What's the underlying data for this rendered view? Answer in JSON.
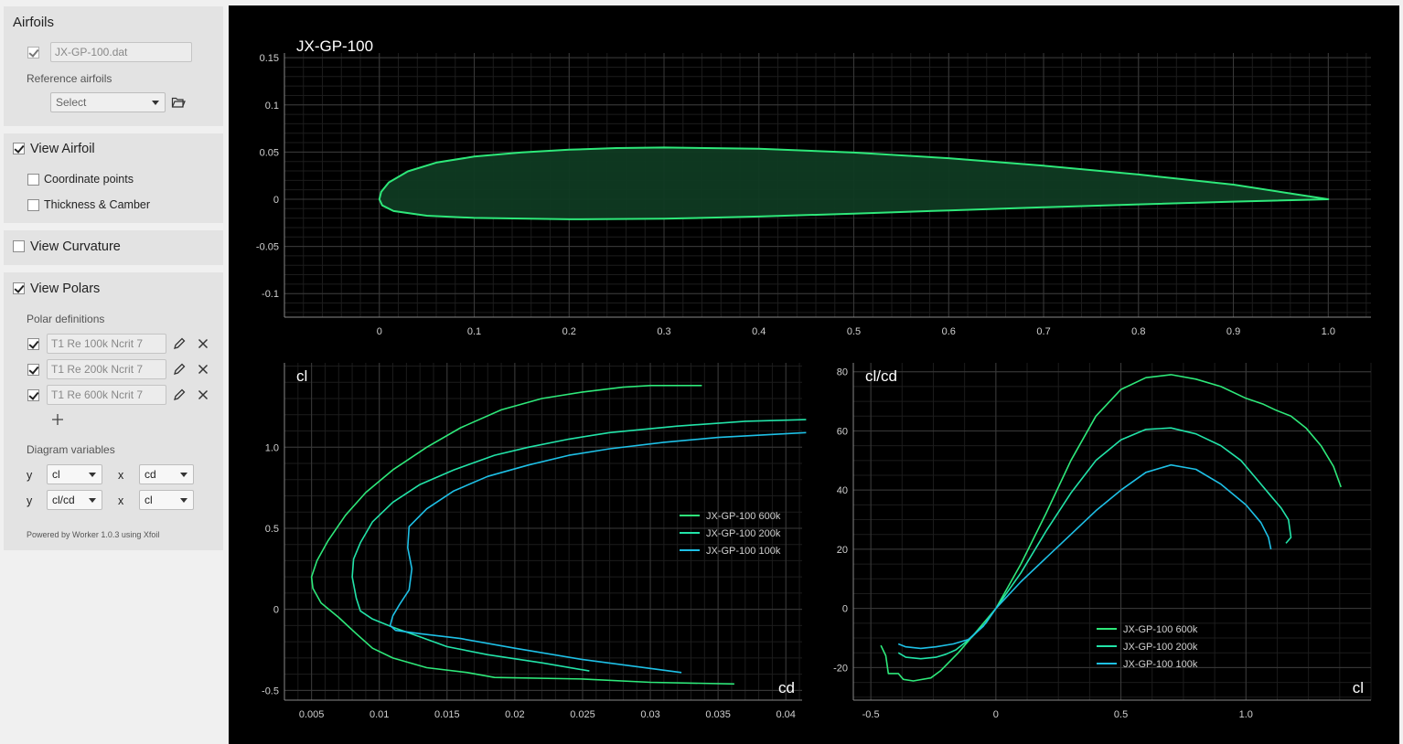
{
  "sidebar": {
    "airfoils": {
      "title": "Airfoils",
      "file_checked": true,
      "file_name": "JX-GP-100.dat",
      "reference_label": "Reference airfoils",
      "reference_select": "Select",
      "folder_icon": "folder-open-icon"
    },
    "view_airfoil": {
      "label": "View Airfoil",
      "checked": true,
      "coordinate_points": "Coordinate points",
      "coordinate_points_checked": false,
      "thickness_camber": "Thickness & Camber",
      "thickness_camber_checked": false
    },
    "view_curvature": {
      "label": "View Curvature",
      "checked": false
    },
    "view_polars": {
      "label": "View Polars",
      "checked": true,
      "polar_definitions_label": "Polar definitions",
      "polars": [
        {
          "name": "T1 Re 100k Ncrit 7",
          "checked": true
        },
        {
          "name": "T1 Re 200k Ncrit 7",
          "checked": true
        },
        {
          "name": "T1 Re 600k Ncrit 7",
          "checked": true
        }
      ],
      "add_icon": "plus-icon",
      "edit_icon": "pencil-icon",
      "delete_icon": "close-icon",
      "diagram_variables_label": "Diagram variables",
      "diagrams": [
        {
          "y_label": "y",
          "y": "cl",
          "x_label": "x",
          "x": "cd"
        },
        {
          "y_label": "y",
          "y": "cl/cd",
          "x_label": "x",
          "x": "cl"
        }
      ],
      "powered_by": "Powered by Worker 1.0.3 using Xfoil"
    }
  },
  "colors": {
    "c600": "#2ee87a",
    "c200": "#22e3a8",
    "c100": "#1ec0e6",
    "airfoil_fill": "#0f3a22",
    "background": "#000000",
    "grid_major": "#3a3a3a",
    "grid_minor": "#1c1c1c",
    "axis_text": "#d0d0d0"
  },
  "chart_data": [
    {
      "type": "area",
      "title": "JX-GP-100",
      "xlabel": "",
      "ylabel": "",
      "xlim": [
        -0.1,
        1.045
      ],
      "ylim": [
        -0.125,
        0.155
      ],
      "xticks": [
        "0",
        "0.1",
        "0.2",
        "0.3",
        "0.4",
        "0.5",
        "0.6",
        "0.7",
        "0.8",
        "0.9",
        "1.0"
      ],
      "xtick_values": [
        0,
        0.1,
        0.2,
        0.3,
        0.4,
        0.5,
        0.6,
        0.7,
        0.8,
        0.9,
        1.0
      ],
      "yticks": [
        "-0.1",
        "-0.05",
        "0",
        "0.05",
        "0.1",
        "0.15"
      ],
      "ytick_values": [
        -0.1,
        -0.05,
        0,
        0.05,
        0.1,
        0.15
      ],
      "grid": true,
      "series": [
        {
          "upper": [
            [
              1.0,
              0
            ],
            [
              0.9,
              0.0155
            ],
            [
              0.8,
              0.0262
            ],
            [
              0.7,
              0.0355
            ],
            [
              0.6,
              0.0435
            ],
            [
              0.5,
              0.0495
            ],
            [
              0.4,
              0.0535
            ],
            [
              0.3,
              0.0548
            ],
            [
              0.25,
              0.0542
            ],
            [
              0.2,
              0.0525
            ],
            [
              0.15,
              0.0497
            ],
            [
              0.1,
              0.0452
            ],
            [
              0.06,
              0.0388
            ],
            [
              0.03,
              0.0295
            ],
            [
              0.01,
              0.0178
            ],
            [
              0.002,
              0.0078
            ],
            [
              0,
              0
            ]
          ],
          "lower": [
            [
              0,
              0
            ],
            [
              0.003,
              -0.0065
            ],
            [
              0.015,
              -0.0125
            ],
            [
              0.05,
              -0.0175
            ],
            [
              0.1,
              -0.0198
            ],
            [
              0.2,
              -0.0212
            ],
            [
              0.3,
              -0.0207
            ],
            [
              0.4,
              -0.0183
            ],
            [
              0.5,
              -0.0152
            ],
            [
              0.6,
              -0.0118
            ],
            [
              0.7,
              -0.0085
            ],
            [
              0.8,
              -0.0054
            ],
            [
              0.9,
              -0.0025
            ],
            [
              1.0,
              0
            ]
          ]
        }
      ]
    },
    {
      "type": "line",
      "title": "",
      "xlabel": "cd",
      "ylabel": "cl",
      "xlim": [
        0.003,
        0.0412
      ],
      "ylim": [
        -0.56,
        1.52
      ],
      "xticks": [
        "0.005",
        "0.01",
        "0.015",
        "0.02",
        "0.025",
        "0.03",
        "0.035",
        "0.04"
      ],
      "xtick_values": [
        0.005,
        0.01,
        0.015,
        0.02,
        0.025,
        0.03,
        0.035,
        0.04
      ],
      "yticks": [
        "-0.5",
        "0",
        "0.5",
        "1.0"
      ],
      "ytick_values": [
        -0.5,
        0,
        0.5,
        1.0
      ],
      "grid": true,
      "legend": "center-right",
      "series": [
        {
          "name": "JX-GP-100 600k",
          "color": "#2ee87a",
          "points": [
            [
              0.0338,
              1.38
            ],
            [
              0.03,
              1.38
            ],
            [
              0.028,
              1.37
            ],
            [
              0.025,
              1.34
            ],
            [
              0.022,
              1.3
            ],
            [
              0.019,
              1.23
            ],
            [
              0.016,
              1.12
            ],
            [
              0.0135,
              1.0
            ],
            [
              0.011,
              0.86
            ],
            [
              0.009,
              0.72
            ],
            [
              0.0075,
              0.58
            ],
            [
              0.0062,
              0.42
            ],
            [
              0.0054,
              0.3
            ],
            [
              0.005,
              0.2
            ],
            [
              0.0051,
              0.13
            ],
            [
              0.0057,
              0.04
            ],
            [
              0.007,
              -0.05
            ],
            [
              0.0083,
              -0.15
            ],
            [
              0.0095,
              -0.24
            ],
            [
              0.011,
              -0.3
            ],
            [
              0.0135,
              -0.36
            ],
            [
              0.0165,
              -0.39
            ],
            [
              0.0185,
              -0.42
            ],
            [
              0.025,
              -0.43
            ],
            [
              0.03,
              -0.45
            ],
            [
              0.0362,
              -0.46
            ]
          ]
        },
        {
          "name": "JX-GP-100 200k",
          "color": "#22e3a8",
          "points": [
            [
              0.0415,
              1.17
            ],
            [
              0.037,
              1.16
            ],
            [
              0.032,
              1.13
            ],
            [
              0.027,
              1.09
            ],
            [
              0.024,
              1.05
            ],
            [
              0.021,
              1.0
            ],
            [
              0.0185,
              0.95
            ],
            [
              0.0155,
              0.86
            ],
            [
              0.013,
              0.77
            ],
            [
              0.011,
              0.66
            ],
            [
              0.0095,
              0.54
            ],
            [
              0.0086,
              0.41
            ],
            [
              0.0081,
              0.31
            ],
            [
              0.008,
              0.2
            ],
            [
              0.0083,
              0.07
            ],
            [
              0.0086,
              -0.01
            ],
            [
              0.0095,
              -0.06
            ],
            [
              0.011,
              -0.11
            ],
            [
              0.013,
              -0.17
            ],
            [
              0.015,
              -0.23
            ],
            [
              0.018,
              -0.28
            ],
            [
              0.022,
              -0.33
            ],
            [
              0.0255,
              -0.38
            ]
          ]
        },
        {
          "name": "JX-GP-100 100k",
          "color": "#1ec0e6",
          "points": [
            [
              0.0415,
              1.09
            ],
            [
              0.035,
              1.06
            ],
            [
              0.031,
              1.03
            ],
            [
              0.027,
              0.99
            ],
            [
              0.024,
              0.95
            ],
            [
              0.021,
              0.89
            ],
            [
              0.018,
              0.82
            ],
            [
              0.0155,
              0.73
            ],
            [
              0.0135,
              0.62
            ],
            [
              0.0122,
              0.51
            ],
            [
              0.0121,
              0.38
            ],
            [
              0.0124,
              0.25
            ],
            [
              0.0122,
              0.12
            ],
            [
              0.0115,
              0.03
            ],
            [
              0.011,
              -0.04
            ],
            [
              0.0108,
              -0.1
            ],
            [
              0.0112,
              -0.13
            ],
            [
              0.013,
              -0.15
            ],
            [
              0.016,
              -0.18
            ],
            [
              0.02,
              -0.24
            ],
            [
              0.025,
              -0.31
            ],
            [
              0.0323,
              -0.39
            ]
          ]
        }
      ]
    },
    {
      "type": "line",
      "title": "",
      "xlabel": "cl",
      "ylabel": "cl/cd",
      "xlim": [
        -0.57,
        1.5
      ],
      "ylim": [
        -31,
        83
      ],
      "xticks": [
        "-0.5",
        "0",
        "0.5",
        "1.0"
      ],
      "xtick_values": [
        -0.5,
        0,
        0.5,
        1.0
      ],
      "yticks": [
        "-20",
        "0",
        "20",
        "40",
        "60",
        "80"
      ],
      "ytick_values": [
        -20,
        0,
        20,
        40,
        60,
        80
      ],
      "grid": true,
      "legend": "bottom-center",
      "series": [
        {
          "name": "JX-GP-100 600k",
          "color": "#2ee87a",
          "points": [
            [
              -0.46,
              -12.5
            ],
            [
              -0.44,
              -16
            ],
            [
              -0.43,
              -22
            ],
            [
              -0.39,
              -22
            ],
            [
              -0.37,
              -24
            ],
            [
              -0.33,
              -24.5
            ],
            [
              -0.26,
              -23.5
            ],
            [
              -0.22,
              -21
            ],
            [
              -0.15,
              -15
            ],
            [
              -0.08,
              -8
            ],
            [
              0,
              0
            ],
            [
              0.1,
              15
            ],
            [
              0.2,
              32
            ],
            [
              0.3,
              50
            ],
            [
              0.4,
              65
            ],
            [
              0.5,
              74
            ],
            [
              0.6,
              78
            ],
            [
              0.7,
              79
            ],
            [
              0.8,
              77.5
            ],
            [
              0.9,
              75
            ],
            [
              1.0,
              71
            ],
            [
              1.07,
              69
            ],
            [
              1.12,
              67
            ],
            [
              1.18,
              65
            ],
            [
              1.24,
              61
            ],
            [
              1.3,
              55
            ],
            [
              1.35,
              48
            ],
            [
              1.38,
              41
            ]
          ]
        },
        {
          "name": "JX-GP-100 200k",
          "color": "#22e3a8",
          "points": [
            [
              -0.39,
              -15
            ],
            [
              -0.36,
              -16.5
            ],
            [
              -0.3,
              -17
            ],
            [
              -0.24,
              -16.5
            ],
            [
              -0.2,
              -15.5
            ],
            [
              -0.16,
              -14
            ],
            [
              -0.1,
              -10
            ],
            [
              -0.04,
              -5
            ],
            [
              0,
              0
            ],
            [
              0.1,
              12
            ],
            [
              0.2,
              26
            ],
            [
              0.3,
              39
            ],
            [
              0.4,
              50
            ],
            [
              0.5,
              57
            ],
            [
              0.6,
              60.5
            ],
            [
              0.7,
              61
            ],
            [
              0.8,
              59
            ],
            [
              0.9,
              55
            ],
            [
              0.98,
              50
            ],
            [
              1.05,
              43
            ],
            [
              1.1,
              38
            ],
            [
              1.14,
              34
            ],
            [
              1.17,
              30
            ],
            [
              1.18,
              24
            ],
            [
              1.16,
              22
            ]
          ]
        },
        {
          "name": "JX-GP-100 100k",
          "color": "#1ec0e6",
          "points": [
            [
              -0.39,
              -12
            ],
            [
              -0.36,
              -13
            ],
            [
              -0.3,
              -13.5
            ],
            [
              -0.24,
              -13
            ],
            [
              -0.17,
              -12
            ],
            [
              -0.11,
              -10.5
            ],
            [
              -0.05,
              -6
            ],
            [
              0,
              0
            ],
            [
              0.1,
              9
            ],
            [
              0.2,
              17
            ],
            [
              0.3,
              25
            ],
            [
              0.4,
              33
            ],
            [
              0.5,
              40
            ],
            [
              0.6,
              46
            ],
            [
              0.7,
              48.5
            ],
            [
              0.8,
              47
            ],
            [
              0.9,
              42
            ],
            [
              1.0,
              35
            ],
            [
              1.06,
              29
            ],
            [
              1.09,
              24
            ],
            [
              1.1,
              20
            ]
          ]
        }
      ]
    }
  ]
}
